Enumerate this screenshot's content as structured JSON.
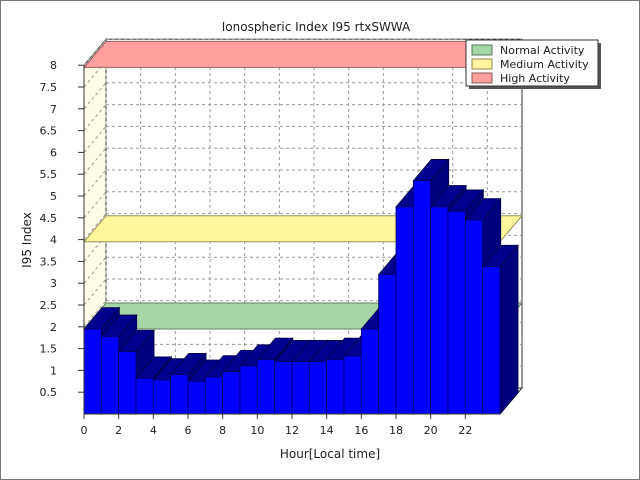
{
  "chart_data": {
    "type": "bar",
    "title": "Ionospheric Index I95 rtxSWWA",
    "xlabel": "Hour[Local time]",
    "ylabel": "I95 Index",
    "x_ticks": [
      0,
      2,
      4,
      6,
      8,
      10,
      12,
      14,
      16,
      18,
      20,
      22
    ],
    "y_ticks": [
      "0.5",
      "1",
      "1.5",
      "2",
      "2.5",
      "3",
      "3.5",
      "4",
      "4.5",
      "5",
      "5.5",
      "6",
      "6.5",
      "7",
      "7.5",
      "8"
    ],
    "ylim": [
      0,
      8
    ],
    "xlim": [
      0,
      24
    ],
    "grid": true,
    "legend_position": "top-right",
    "categories": [
      0,
      1,
      2,
      3,
      4,
      5,
      6,
      7,
      8,
      9,
      10,
      11,
      12,
      13,
      14,
      15,
      16,
      17,
      18,
      19,
      20,
      21,
      22,
      23
    ],
    "series": [
      {
        "color": "#0000ff",
        "values": [
          1.95,
          1.78,
          1.43,
          0.82,
          0.78,
          0.9,
          0.75,
          0.85,
          0.97,
          1.1,
          1.25,
          1.2,
          1.2,
          1.2,
          1.25,
          1.33,
          1.95,
          3.2,
          4.75,
          5.35,
          4.75,
          4.65,
          4.45,
          3.38
        ]
      }
    ],
    "bands": [
      {
        "name": "Normal Activity",
        "from": 1.95,
        "to": 2.0,
        "color": "#a5d6a7"
      },
      {
        "name": "Medium Activity",
        "from": 3.95,
        "to": 4.0,
        "color": "#fff59d"
      },
      {
        "name": "High Activity",
        "from": 7.95,
        "to": 8.0,
        "color": "#ff9f9f"
      }
    ]
  }
}
